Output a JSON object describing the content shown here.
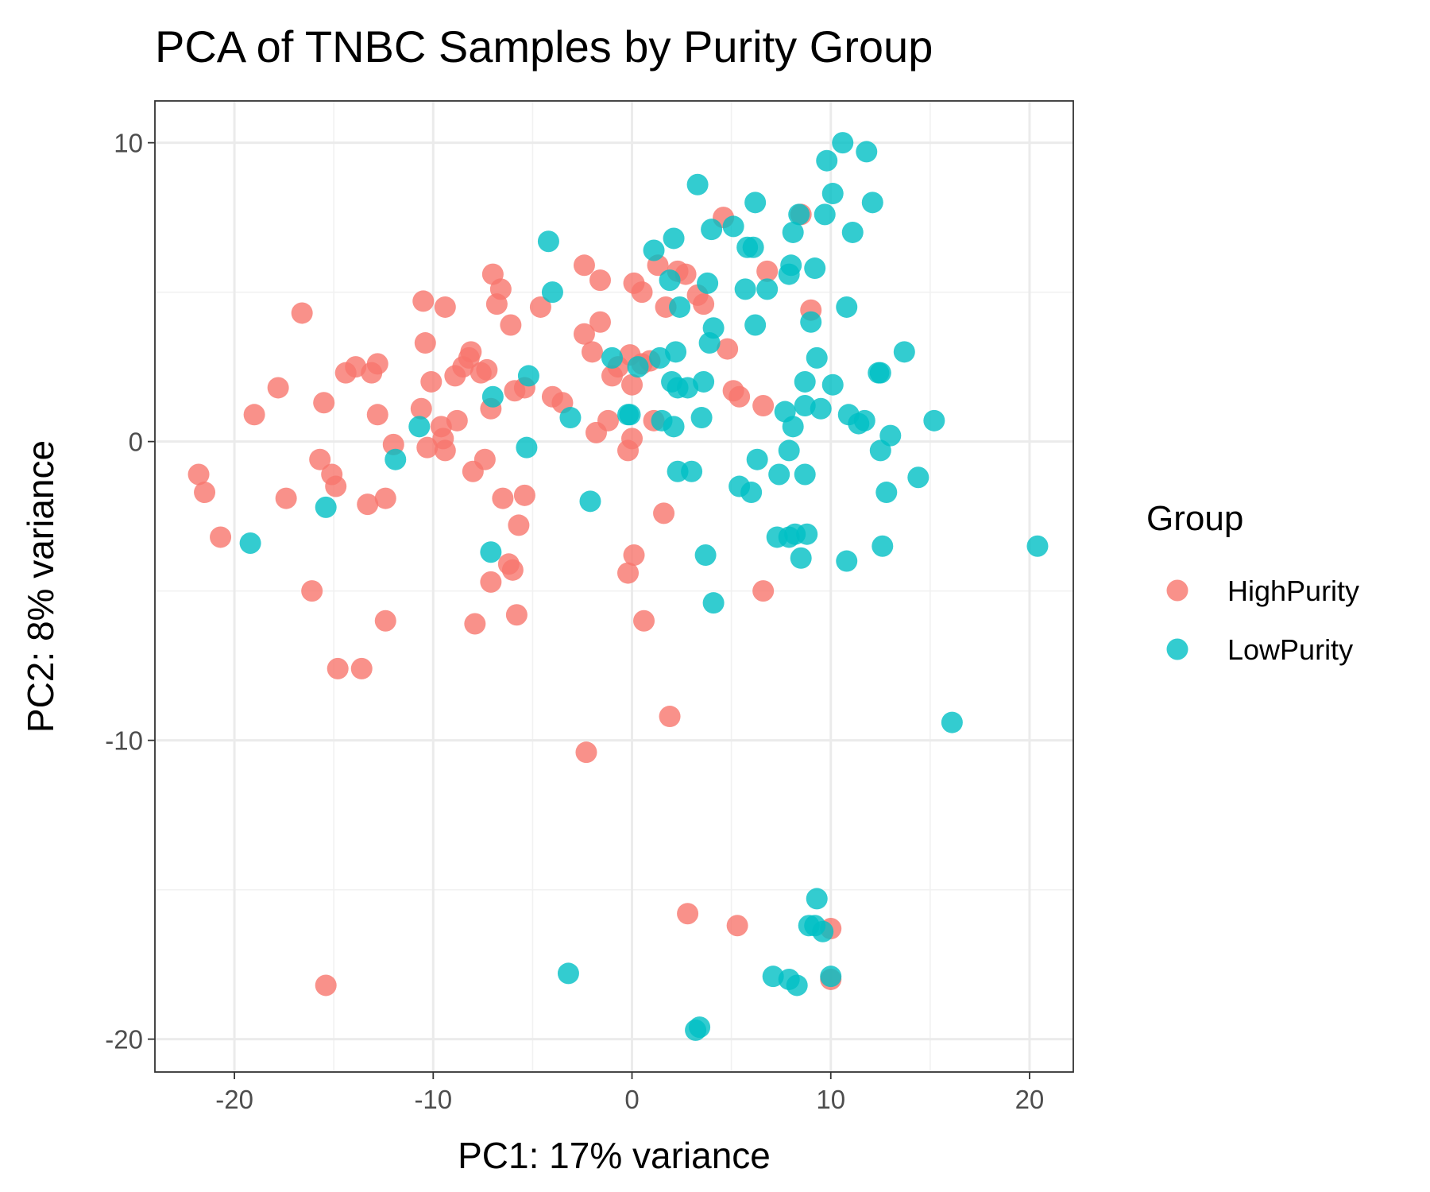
{
  "chart_data": {
    "type": "scatter",
    "title": "PCA of TNBC Samples by Purity Group",
    "xlabel": "PC1: 17% variance",
    "ylabel": "PC2: 8% variance",
    "xlim": [
      -24,
      22.2
    ],
    "ylim": [
      -21.1,
      11.4
    ],
    "x_ticks": [
      -20,
      -10,
      0,
      10,
      20
    ],
    "y_ticks": [
      10,
      0,
      -10,
      -20
    ],
    "x_tick_labels": [
      "-20",
      "-10",
      "0",
      "10",
      "20"
    ],
    "y_tick_labels": [
      "10",
      "0",
      "-10",
      "-20"
    ],
    "grid": true,
    "legend": {
      "title": "Group",
      "position": "right"
    },
    "series": [
      {
        "name": "HighPurity",
        "color": "#F8766D",
        "points": [
          [
            -21.8,
            -1.1
          ],
          [
            -21.5,
            -1.7
          ],
          [
            -20.7,
            -3.2
          ],
          [
            -19,
            0.9
          ],
          [
            -17.8,
            1.8
          ],
          [
            -17.4,
            -1.9
          ],
          [
            -16.6,
            4.3
          ],
          [
            -16.1,
            -5
          ],
          [
            -15.7,
            -0.6
          ],
          [
            -15.5,
            1.3
          ],
          [
            -15.4,
            -18.2
          ],
          [
            -15.1,
            -1.1
          ],
          [
            -14.9,
            -1.5
          ],
          [
            -14.8,
            -7.6
          ],
          [
            -14.4,
            2.3
          ],
          [
            -13.9,
            2.5
          ],
          [
            -13.6,
            -7.6
          ],
          [
            -13.3,
            -2.1
          ],
          [
            -13.1,
            2.3
          ],
          [
            -12.8,
            2.6
          ],
          [
            -12.8,
            0.9
          ],
          [
            -12.4,
            -1.9
          ],
          [
            -12.4,
            -6
          ],
          [
            -12,
            -0.1
          ],
          [
            -10.6,
            1.1
          ],
          [
            -10.5,
            4.7
          ],
          [
            -10.4,
            3.3
          ],
          [
            -10.3,
            -0.2
          ],
          [
            -10.1,
            2
          ],
          [
            -9.6,
            0.5
          ],
          [
            -9.5,
            0.1
          ],
          [
            -9.4,
            -0.3
          ],
          [
            -9.4,
            4.5
          ],
          [
            -8.9,
            2.2
          ],
          [
            -8.8,
            0.7
          ],
          [
            -8.5,
            2.5
          ],
          [
            -8.2,
            2.8
          ],
          [
            -8.1,
            3
          ],
          [
            -8,
            -1
          ],
          [
            -7.9,
            -6.1
          ],
          [
            -7.6,
            2.3
          ],
          [
            -7.4,
            -0.6
          ],
          [
            -7.3,
            2.4
          ],
          [
            -7.1,
            1.1
          ],
          [
            -7,
            5.6
          ],
          [
            -7.1,
            -4.7
          ],
          [
            -6.8,
            4.6
          ],
          [
            -6.6,
            5.1
          ],
          [
            -6.5,
            -1.9
          ],
          [
            -6.2,
            -4.1
          ],
          [
            -6.1,
            3.9
          ],
          [
            -6,
            -4.3
          ],
          [
            -5.9,
            1.7
          ],
          [
            -5.8,
            -5.8
          ],
          [
            -5.7,
            -2.8
          ],
          [
            -5.4,
            1.8
          ],
          [
            -5.4,
            -1.8
          ],
          [
            -4.6,
            4.5
          ],
          [
            -4,
            1.5
          ],
          [
            -3.5,
            1.3
          ],
          [
            -2.4,
            3.6
          ],
          [
            -2.4,
            5.9
          ],
          [
            -2.3,
            -10.4
          ],
          [
            -2,
            3
          ],
          [
            -1.8,
            0.3
          ],
          [
            -1.6,
            5.4
          ],
          [
            -1.6,
            4
          ],
          [
            -1.2,
            0.7
          ],
          [
            -1,
            2.2
          ],
          [
            -0.7,
            2.5
          ],
          [
            -0.2,
            -0.3
          ],
          [
            -0.2,
            -4.4
          ],
          [
            -0.1,
            2.9
          ],
          [
            0,
            0.1
          ],
          [
            0,
            1.9
          ],
          [
            0.1,
            -3.8
          ],
          [
            0.1,
            5.3
          ],
          [
            0.5,
            5
          ],
          [
            0.6,
            -6
          ],
          [
            0.5,
            2.6
          ],
          [
            0.9,
            2.7
          ],
          [
            1.1,
            0.7
          ],
          [
            1.3,
            5.9
          ],
          [
            1.6,
            -2.4
          ],
          [
            1.7,
            4.5
          ],
          [
            1.9,
            -9.2
          ],
          [
            2.3,
            5.7
          ],
          [
            2.7,
            5.6
          ],
          [
            2.8,
            -15.8
          ],
          [
            3.3,
            4.9
          ],
          [
            3.6,
            4.6
          ],
          [
            4.6,
            7.5
          ],
          [
            4.8,
            3.1
          ],
          [
            5.1,
            1.7
          ],
          [
            5.3,
            -16.2
          ],
          [
            5.4,
            1.5
          ],
          [
            6.6,
            1.2
          ],
          [
            6.6,
            -5
          ],
          [
            6.8,
            5.7
          ],
          [
            8.5,
            7.6
          ],
          [
            9,
            4.4
          ],
          [
            10,
            -16.3
          ],
          [
            10,
            -18
          ]
        ]
      },
      {
        "name": "LowPurity",
        "color": "#00BFC4",
        "points": [
          [
            -19.2,
            -3.4
          ],
          [
            -15.4,
            -2.2
          ],
          [
            -11.9,
            -0.6
          ],
          [
            -10.7,
            0.5
          ],
          [
            -7.1,
            -3.7
          ],
          [
            -7,
            1.5
          ],
          [
            -5.3,
            -0.2
          ],
          [
            -5.2,
            2.2
          ],
          [
            -4.2,
            6.7
          ],
          [
            -4,
            5
          ],
          [
            -3.2,
            -17.8
          ],
          [
            -3.1,
            0.8
          ],
          [
            -2.1,
            -2
          ],
          [
            -1,
            2.8
          ],
          [
            -0.2,
            0.9
          ],
          [
            0.3,
            2.5
          ],
          [
            1.1,
            6.4
          ],
          [
            1.4,
            2.8
          ],
          [
            1.5,
            0.7
          ],
          [
            1.9,
            5.4
          ],
          [
            2,
            2
          ],
          [
            2.1,
            0.5
          ],
          [
            2.1,
            6.8
          ],
          [
            2.2,
            3
          ],
          [
            2.3,
            1.8
          ],
          [
            2.3,
            -1
          ],
          [
            2.4,
            4.5
          ],
          [
            2.8,
            1.8
          ],
          [
            3,
            -1
          ],
          [
            3.2,
            -19.7
          ],
          [
            3.3,
            8.6
          ],
          [
            3.4,
            -19.6
          ],
          [
            3.5,
            0.8
          ],
          [
            3.6,
            2
          ],
          [
            3.7,
            -3.8
          ],
          [
            3.8,
            5.3
          ],
          [
            3.9,
            3.3
          ],
          [
            4,
            7.1
          ],
          [
            4.1,
            3.8
          ],
          [
            4.1,
            -5.4
          ],
          [
            5.1,
            7.2
          ],
          [
            5.4,
            -1.5
          ],
          [
            5.7,
            5.1
          ],
          [
            5.8,
            6.5
          ],
          [
            6,
            -1.7
          ],
          [
            6.1,
            6.5
          ],
          [
            6.2,
            3.9
          ],
          [
            6.2,
            8
          ],
          [
            6.3,
            -0.6
          ],
          [
            6.8,
            5.1
          ],
          [
            7.1,
            -17.9
          ],
          [
            7.3,
            -3.2
          ],
          [
            7.4,
            -1.1
          ],
          [
            7.7,
            1
          ],
          [
            7.9,
            -18
          ],
          [
            7.9,
            -3.2
          ],
          [
            7.9,
            5.6
          ],
          [
            7.9,
            -0.3
          ],
          [
            8,
            5.9
          ],
          [
            8.1,
            7
          ],
          [
            8.1,
            0.5
          ],
          [
            8.2,
            -3.1
          ],
          [
            8.3,
            -18.2
          ],
          [
            8.4,
            7.6
          ],
          [
            8.5,
            -3.9
          ],
          [
            8.7,
            1.2
          ],
          [
            8.7,
            -1.1
          ],
          [
            8.8,
            -3.1
          ],
          [
            8.9,
            -16.2
          ],
          [
            8.7,
            2
          ],
          [
            9,
            4
          ],
          [
            9.2,
            -16.2
          ],
          [
            9.3,
            2.8
          ],
          [
            9.3,
            -15.3
          ],
          [
            9.5,
            1.1
          ],
          [
            9.6,
            -16.4
          ],
          [
            9.7,
            7.6
          ],
          [
            9.8,
            9.4
          ],
          [
            10,
            -17.9
          ],
          [
            10.1,
            8.3
          ],
          [
            10.1,
            1.9
          ],
          [
            10.6,
            10
          ],
          [
            10.8,
            4.5
          ],
          [
            10.9,
            0.9
          ],
          [
            10.8,
            -4
          ],
          [
            11.1,
            7
          ],
          [
            11.4,
            0.6
          ],
          [
            11.7,
            0.7
          ],
          [
            11.8,
            9.7
          ],
          [
            12.1,
            8
          ],
          [
            12.4,
            2.3
          ],
          [
            12.5,
            2.3
          ],
          [
            12.5,
            -0.3
          ],
          [
            12.6,
            -3.5
          ],
          [
            12.8,
            -1.7
          ],
          [
            13,
            0.2
          ],
          [
            13.7,
            3
          ],
          [
            14.4,
            -1.2
          ],
          [
            15.2,
            0.7
          ],
          [
            16.1,
            -9.4
          ],
          [
            20.4,
            -3.5
          ],
          [
            9.2,
            5.8
          ],
          [
            -0.1,
            0.9
          ]
        ]
      }
    ]
  }
}
